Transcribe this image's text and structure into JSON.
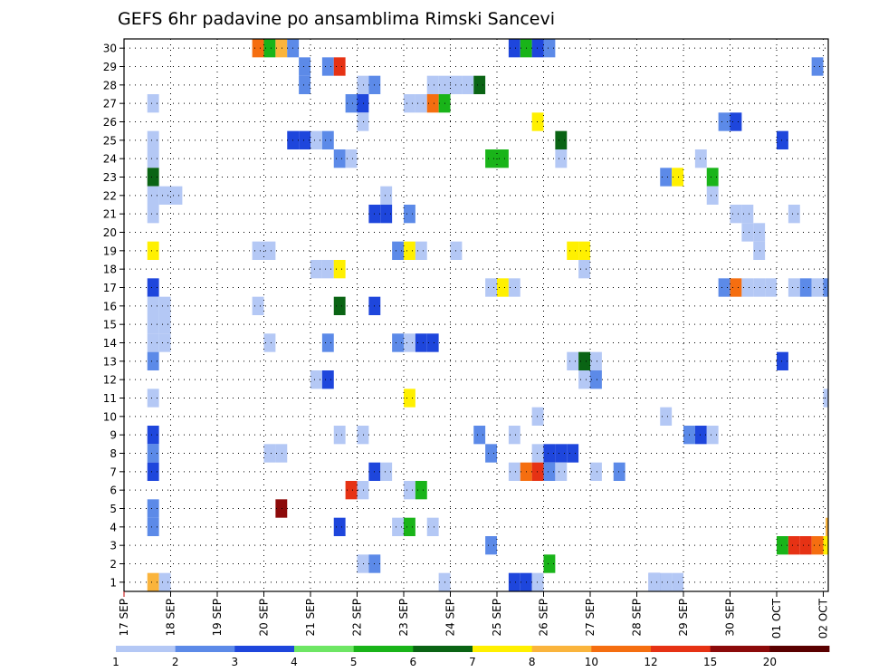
{
  "chart_data": {
    "type": "heatmap",
    "title": "GEFS 6hr padavine po ansamblima Rimski Sancevi",
    "xlabel": "",
    "ylabel": "",
    "x_tick_labels": [
      "17 SEP",
      "18 SEP",
      "19 SEP",
      "20 SEP",
      "21 SEP",
      "22 SEP",
      "23 SEP",
      "24 SEP",
      "25 SEP",
      "26 SEP",
      "27 SEP",
      "28 SEP",
      "29 SEP",
      "30 SEP",
      "01 OCT",
      "02 OCT"
    ],
    "y_tick_labels": [
      "1",
      "2",
      "3",
      "4",
      "5",
      "6",
      "7",
      "8",
      "9",
      "10",
      "11",
      "12",
      "13",
      "14",
      "15",
      "16",
      "17",
      "18",
      "19",
      "20",
      "21",
      "22",
      "23",
      "24",
      "25",
      "26",
      "27",
      "28",
      "29",
      "30"
    ],
    "xlim_days": [
      0,
      15.15
    ],
    "x_step_days": 0.25,
    "ylim": [
      0,
      30
    ],
    "grid": true,
    "colorbar": {
      "position": "bottom",
      "labels": [
        "1",
        "2",
        "3",
        "4",
        "5",
        "6",
        "7",
        "8",
        "10",
        "12",
        "15",
        "20"
      ],
      "colors": [
        "#b4c8f5",
        "#5c8ae8",
        "#1e46dc",
        "#6ee664",
        "#19b419",
        "#0a6414",
        "#fff000",
        "#fab43c",
        "#f56e10",
        "#e63214",
        "#8c0a0a",
        "#5a0000"
      ]
    },
    "cells": [
      {
        "member": 30,
        "days": [
          2.75,
          3.0,
          3.25,
          3.5,
          8.25,
          8.5,
          8.75,
          9.0
        ],
        "values": [
          10,
          5,
          8,
          2,
          3,
          5,
          3,
          2
        ]
      },
      {
        "member": 29,
        "days": [
          3.75,
          4.25,
          4.5,
          14.75
        ],
        "values": [
          2,
          2,
          12,
          2
        ]
      },
      {
        "member": 28,
        "days": [
          3.75,
          5.0,
          5.25,
          6.5,
          6.75,
          7.0,
          7.25,
          7.5
        ],
        "values": [
          2,
          1,
          2,
          1,
          1,
          1,
          1,
          6
        ]
      },
      {
        "member": 27,
        "days": [
          0.5,
          4.75,
          5.0,
          6.0,
          6.25,
          6.5,
          6.75
        ],
        "values": [
          1,
          2,
          3,
          1,
          1,
          10,
          5
        ]
      },
      {
        "member": 26,
        "days": [
          5.0,
          8.75,
          12.75,
          13.0
        ],
        "values": [
          1,
          7,
          2,
          3
        ]
      },
      {
        "member": 25,
        "days": [
          0.5,
          3.5,
          3.75,
          4.0,
          4.25,
          9.25,
          14.0
        ],
        "values": [
          1,
          3,
          3,
          1,
          2,
          6,
          3
        ]
      },
      {
        "member": 24,
        "days": [
          0.5,
          4.5,
          4.75,
          7.75,
          8.0,
          9.25,
          12.25
        ],
        "values": [
          1,
          2,
          1,
          5,
          5,
          1,
          1
        ]
      },
      {
        "member": 23,
        "days": [
          0.5,
          11.5,
          11.75,
          12.5
        ],
        "values": [
          6,
          2,
          7,
          5
        ]
      },
      {
        "member": 22,
        "days": [
          0.5,
          0.75,
          1.0,
          5.5,
          12.5
        ],
        "values": [
          1,
          1,
          1,
          1,
          1
        ]
      },
      {
        "member": 21,
        "days": [
          0.5,
          5.25,
          5.5,
          6.0,
          13.0,
          13.25,
          14.25
        ],
        "values": [
          1,
          3,
          3,
          2,
          1,
          1,
          1
        ]
      },
      {
        "member": 20,
        "days": [
          13.25,
          13.5
        ],
        "values": [
          1,
          1
        ]
      },
      {
        "member": 19,
        "days": [
          0.5,
          2.75,
          3.0,
          5.75,
          6.0,
          6.25,
          7.0,
          9.5,
          9.75,
          13.5
        ],
        "values": [
          7,
          1,
          1,
          2,
          7,
          1,
          1,
          7,
          7,
          1
        ]
      },
      {
        "member": 18,
        "days": [
          4.0,
          4.25,
          4.5,
          9.75
        ],
        "values": [
          1,
          1,
          7,
          1
        ]
      },
      {
        "member": 17,
        "days": [
          0.5,
          7.75,
          8.0,
          8.25,
          12.75,
          13.0,
          13.25,
          13.5,
          13.75,
          14.25,
          14.5,
          14.75,
          15.0
        ],
        "values": [
          3,
          1,
          7,
          1,
          2,
          10,
          1,
          1,
          1,
          1,
          2,
          1,
          2
        ]
      },
      {
        "member": 16,
        "days": [
          0.5,
          0.75,
          2.75,
          4.5,
          5.25
        ],
        "values": [
          1,
          1,
          1,
          6,
          3
        ]
      },
      {
        "member": 15,
        "days": [
          0.5,
          0.75
        ],
        "values": [
          1,
          1
        ]
      },
      {
        "member": 14,
        "days": [
          0.5,
          0.75,
          3.0,
          4.25,
          5.75,
          6.0,
          6.25,
          6.5
        ],
        "values": [
          1,
          1,
          1,
          2,
          2,
          1,
          3,
          3
        ]
      },
      {
        "member": 13,
        "days": [
          0.5,
          9.5,
          9.75,
          10.0,
          14.0
        ],
        "values": [
          2,
          1,
          6,
          1,
          3
        ]
      },
      {
        "member": 12,
        "days": [
          4.0,
          4.25,
          9.75,
          10.0
        ],
        "values": [
          1,
          3,
          1,
          2
        ]
      },
      {
        "member": 11,
        "days": [
          0.5,
          6.0,
          15.0
        ],
        "values": [
          1,
          7,
          1
        ]
      },
      {
        "member": 10,
        "days": [
          8.75,
          11.5
        ],
        "values": [
          1,
          1
        ]
      },
      {
        "member": 9,
        "days": [
          0.5,
          4.5,
          5.0,
          7.5,
          8.25,
          12.0,
          12.25,
          12.5
        ],
        "values": [
          3,
          1,
          1,
          2,
          1,
          2,
          3,
          1
        ]
      },
      {
        "member": 8,
        "days": [
          0.5,
          3.0,
          3.25,
          7.75,
          8.75,
          9.0,
          9.25,
          9.5
        ],
        "values": [
          2,
          1,
          1,
          2,
          1,
          3,
          3,
          3
        ]
      },
      {
        "member": 7,
        "days": [
          0.5,
          5.25,
          5.5,
          8.25,
          8.5,
          8.75,
          9.0,
          9.25,
          10.0,
          10.5
        ],
        "values": [
          3,
          3,
          1,
          1,
          10,
          12,
          2,
          1,
          1,
          2
        ]
      },
      {
        "member": 6,
        "days": [
          4.75,
          5.0,
          6.0,
          6.25
        ],
        "values": [
          12,
          1,
          1,
          5
        ]
      },
      {
        "member": 5,
        "days": [
          0.5,
          3.25
        ],
        "values": [
          2,
          15
        ]
      },
      {
        "member": 4,
        "days": [
          0.5,
          4.5,
          5.75,
          6.0,
          6.5,
          15.05
        ],
        "values": [
          2,
          3,
          1,
          5,
          1,
          8
        ]
      },
      {
        "member": 3,
        "days": [
          7.75,
          14.0,
          14.25,
          14.5,
          14.75,
          15.0
        ],
        "values": [
          2,
          5,
          12,
          12,
          10,
          7
        ]
      },
      {
        "member": 2,
        "days": [
          5.0,
          5.25,
          9.0
        ],
        "values": [
          1,
          2,
          5
        ]
      },
      {
        "member": 1,
        "days": [
          0.5,
          0.75,
          8.25,
          8.5,
          8.75,
          11.25,
          11.75,
          6.75,
          11.5,
          11.25
        ],
        "values": [
          8,
          1,
          3,
          3,
          1,
          3,
          1,
          1,
          1,
          1
        ]
      }
    ]
  }
}
